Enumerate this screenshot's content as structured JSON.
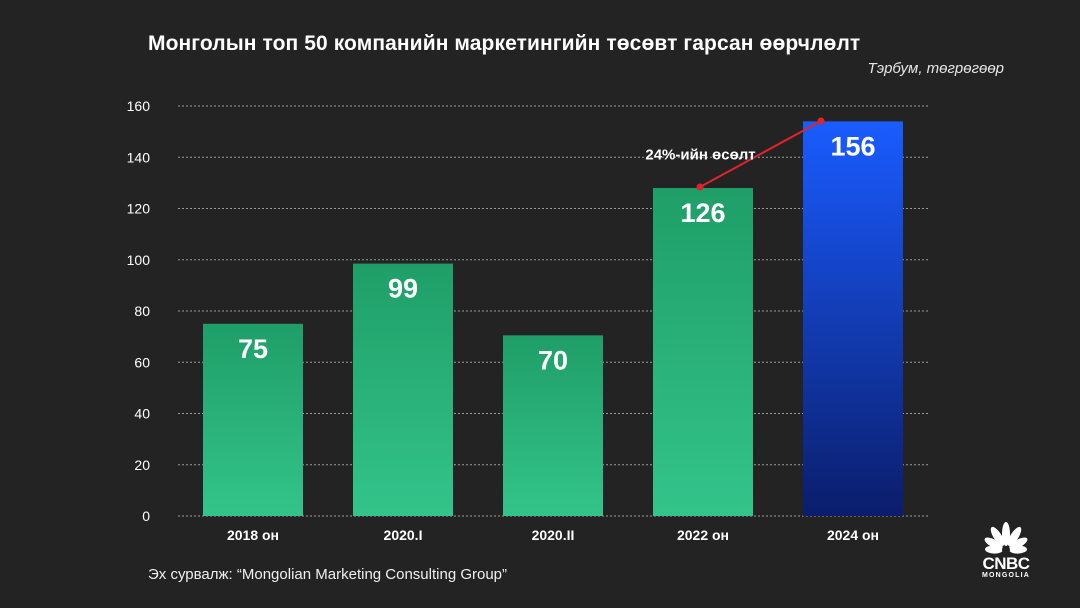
{
  "title": "Монголын топ 50 компанийн маркетингийн төсөвт гарсан өөрчлөлт",
  "unit_note": "Тэрбум, төгрөгөөр",
  "source": "Эх сурвалж: “Mongolian Marketing Consulting Group”",
  "logo": {
    "wordmark": "CNBC",
    "subtitle": "MONGOLIA",
    "icon": "peacock-icon"
  },
  "colors": {
    "background": "#232323",
    "bar_green_top": "#1f9e68",
    "bar_green_bottom": "#33c48a",
    "bar_blue_top": "#1a5cff",
    "bar_blue_bottom": "#0b1d6b",
    "annotation_line": "#e0242b",
    "gridline": "#cfcfcf"
  },
  "chart_data": {
    "type": "bar",
    "title": "Монголын топ 50 компанийн маркетингийн төсөвт гарсан өөрчлөлт",
    "ylabel": "Тэрбум, төгрөгөөр",
    "categories": [
      "2018 он",
      "2020.I",
      "2020.II",
      "2022 он",
      "2024 он"
    ],
    "values": [
      75,
      99,
      70,
      126,
      156
    ],
    "bar_heights": [
      75,
      98.5,
      70.5,
      128,
      154
    ],
    "ylim": [
      0,
      160
    ],
    "yticks": [
      0,
      20,
      40,
      60,
      80,
      100,
      120,
      140,
      160
    ],
    "grid": true,
    "highlight_category": "2024 он",
    "annotation": {
      "text": "24%-ийн өсөлт",
      "from": "2022 он",
      "to": "2024 он"
    }
  }
}
